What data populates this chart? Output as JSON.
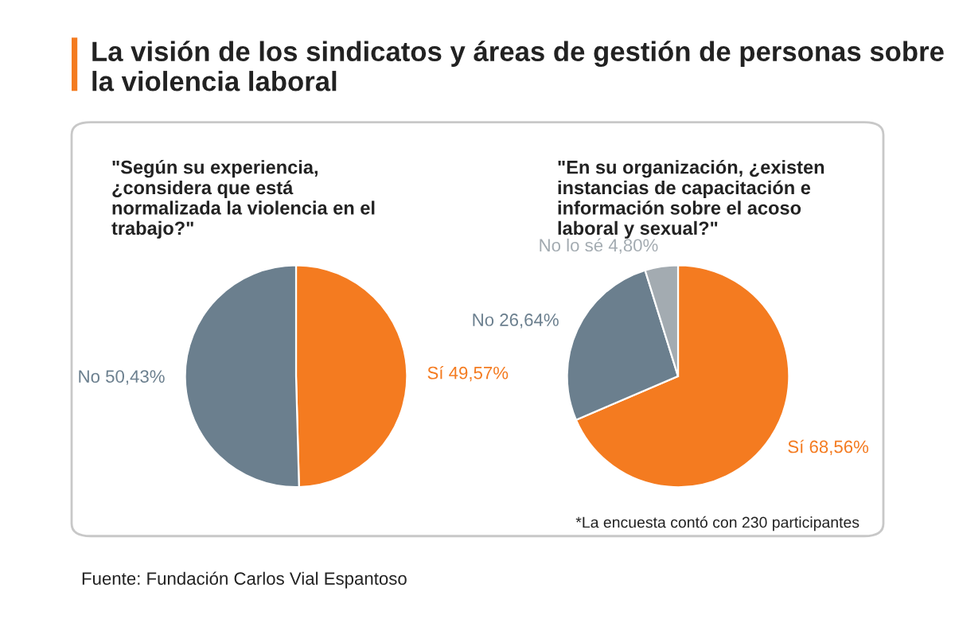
{
  "chart_data": [
    {
      "type": "pie",
      "title": "La visión de los sindicatos y áreas de gestión de personas sobre la violencia laboral",
      "subtitle": "\"Según su experiencia, ¿considera que está normalizada la violencia en el trabajo?\"",
      "categories": [
        "Sí",
        "No"
      ],
      "values": [
        49.57,
        50.43
      ],
      "colors": [
        "#f47b20",
        "#6b7f8e"
      ],
      "value_labels": [
        "49,57%",
        "50,43%"
      ]
    },
    {
      "type": "pie",
      "title": "\"En su organización, ¿existen instancias de capacitación e información sobre el acoso laboral y sexual?\"",
      "categories": [
        "Sí",
        "No",
        "No lo sé"
      ],
      "values": [
        68.56,
        26.64,
        4.8
      ],
      "colors": [
        "#f47b20",
        "#6b7f8e",
        "#a3abb1"
      ],
      "value_labels": [
        "68,56%",
        "26,64%",
        "4,80%"
      ],
      "annotations": [
        "*La encuesta contó con 230 participantes",
        "Fuente: Fundación Carlos Vial Espantoso"
      ]
    }
  ]
}
